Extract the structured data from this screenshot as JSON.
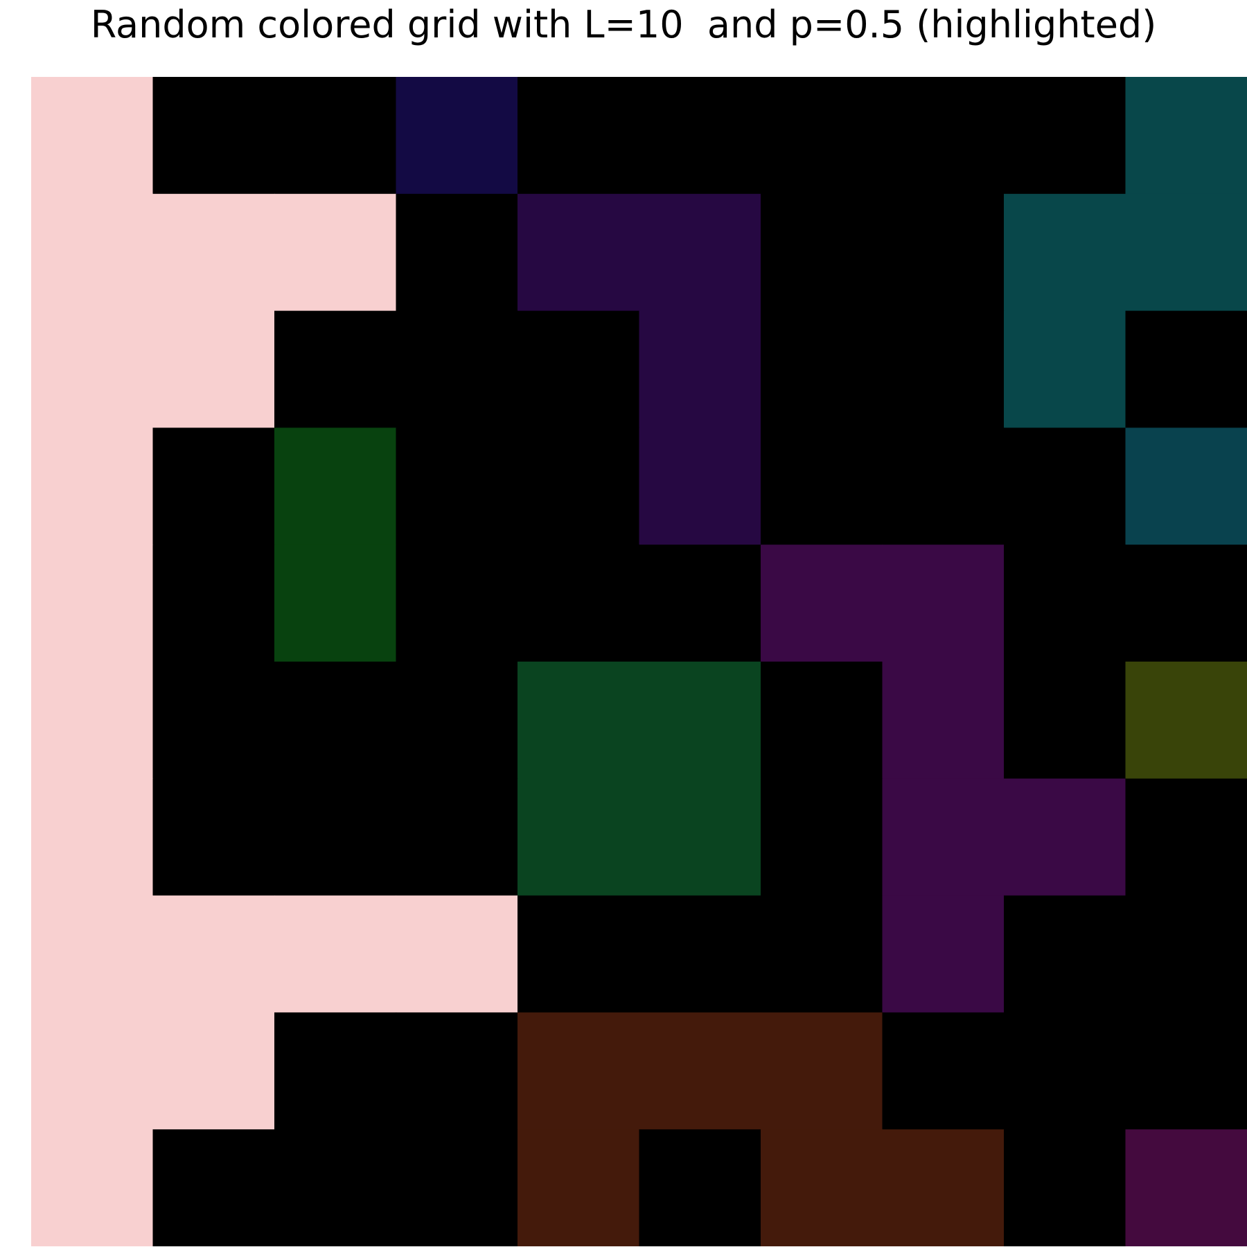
{
  "chart_data": {
    "type": "heatmap",
    "title": "Random colored grid with L=10  and p=0.5 (highlighted)",
    "L": 10,
    "p": 0.5,
    "xlabel": "",
    "ylabel": "",
    "grid": false,
    "legend": "none",
    "palette": {
      "0": "#000000",
      "1": "#f8d0d0",
      "2": "#130a44",
      "3": "#08474a",
      "4": "#260842",
      "5": "#09424e",
      "6": "#08420f",
      "7": "#3a0945",
      "8": "#0a4420",
      "9": "#394409",
      "10": "#441a0b",
      "11": "#440a3e"
    },
    "cells": [
      [
        1,
        0,
        0,
        2,
        0,
        0,
        0,
        0,
        0,
        3
      ],
      [
        1,
        1,
        1,
        0,
        4,
        4,
        0,
        0,
        3,
        3
      ],
      [
        1,
        1,
        0,
        0,
        0,
        4,
        0,
        0,
        3,
        0
      ],
      [
        1,
        0,
        6,
        0,
        0,
        4,
        0,
        0,
        0,
        5
      ],
      [
        1,
        0,
        6,
        0,
        0,
        0,
        7,
        7,
        0,
        0
      ],
      [
        1,
        0,
        0,
        0,
        8,
        8,
        0,
        7,
        0,
        9
      ],
      [
        1,
        0,
        0,
        0,
        8,
        8,
        0,
        7,
        7,
        0
      ],
      [
        1,
        1,
        1,
        1,
        0,
        0,
        0,
        7,
        0,
        0
      ],
      [
        1,
        1,
        0,
        0,
        10,
        10,
        10,
        0,
        0,
        0
      ],
      [
        1,
        0,
        0,
        0,
        10,
        0,
        10,
        10,
        0,
        11
      ]
    ]
  }
}
